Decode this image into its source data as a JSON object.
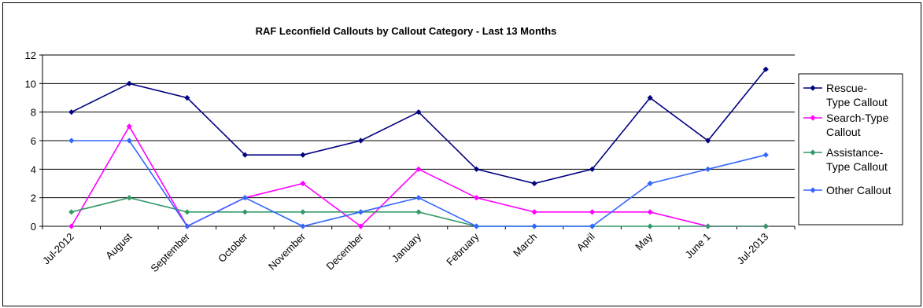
{
  "chart_data": {
    "type": "line",
    "title": "RAF Leconfield Callouts by Callout Category - Last 13 Months",
    "categories": [
      "Jul-2012",
      "August",
      "September",
      "October",
      "November",
      "December",
      "January",
      "February",
      "March",
      "April",
      "May",
      "June 1",
      "Jul-2013"
    ],
    "ylim": [
      0,
      12
    ],
    "yticks": [
      0,
      2,
      4,
      6,
      8,
      10,
      12
    ],
    "grid": true,
    "legend_position": "right",
    "series": [
      {
        "name": "Rescue-Type Callout",
        "legend_lines": [
          "Rescue-",
          "Type Callout"
        ],
        "color": "#000080",
        "values": [
          8,
          10,
          9,
          5,
          5,
          6,
          8,
          4,
          3,
          4,
          9,
          6,
          11
        ]
      },
      {
        "name": "Search-Type Callout",
        "legend_lines": [
          "Search-Type",
          "Callout"
        ],
        "color": "#ff00ff",
        "values": [
          0,
          7,
          0,
          2,
          3,
          0,
          4,
          2,
          1,
          1,
          1,
          0,
          0
        ]
      },
      {
        "name": "Assistance-Type Callout",
        "legend_lines": [
          "Assistance-",
          "Type Callout"
        ],
        "color": "#339966",
        "values": [
          1,
          2,
          1,
          1,
          1,
          1,
          1,
          0,
          0,
          0,
          0,
          0,
          0
        ]
      },
      {
        "name": "Other Callout",
        "legend_lines": [
          "Other Callout"
        ],
        "color": "#3366ff",
        "values": [
          6,
          6,
          0,
          2,
          0,
          1,
          2,
          0,
          0,
          0,
          3,
          4,
          5
        ]
      }
    ]
  }
}
